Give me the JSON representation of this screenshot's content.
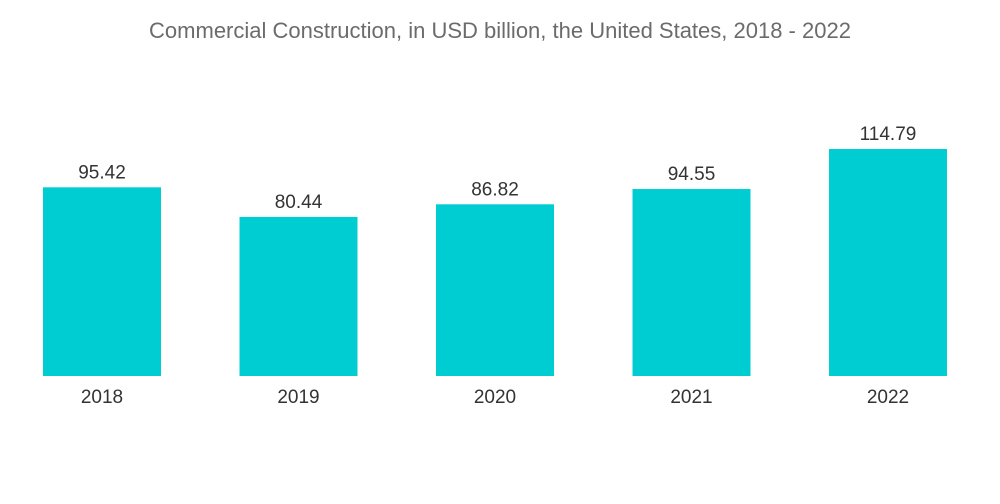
{
  "chart_data": {
    "type": "bar",
    "title": "Commercial Construction, in USD billion, the United States, 2018 - 2022",
    "xlabel": "",
    "ylabel": "",
    "categories": [
      "2018",
      "2019",
      "2020",
      "2021",
      "2022"
    ],
    "values": [
      95.42,
      80.44,
      86.82,
      94.55,
      114.79
    ],
    "value_labels": [
      "95.42",
      "80.44",
      "86.82",
      "94.55",
      "114.79"
    ],
    "ylim": [
      0,
      114.79
    ],
    "grid": false,
    "legend": "none",
    "bar_color": "#00cdd1"
  }
}
